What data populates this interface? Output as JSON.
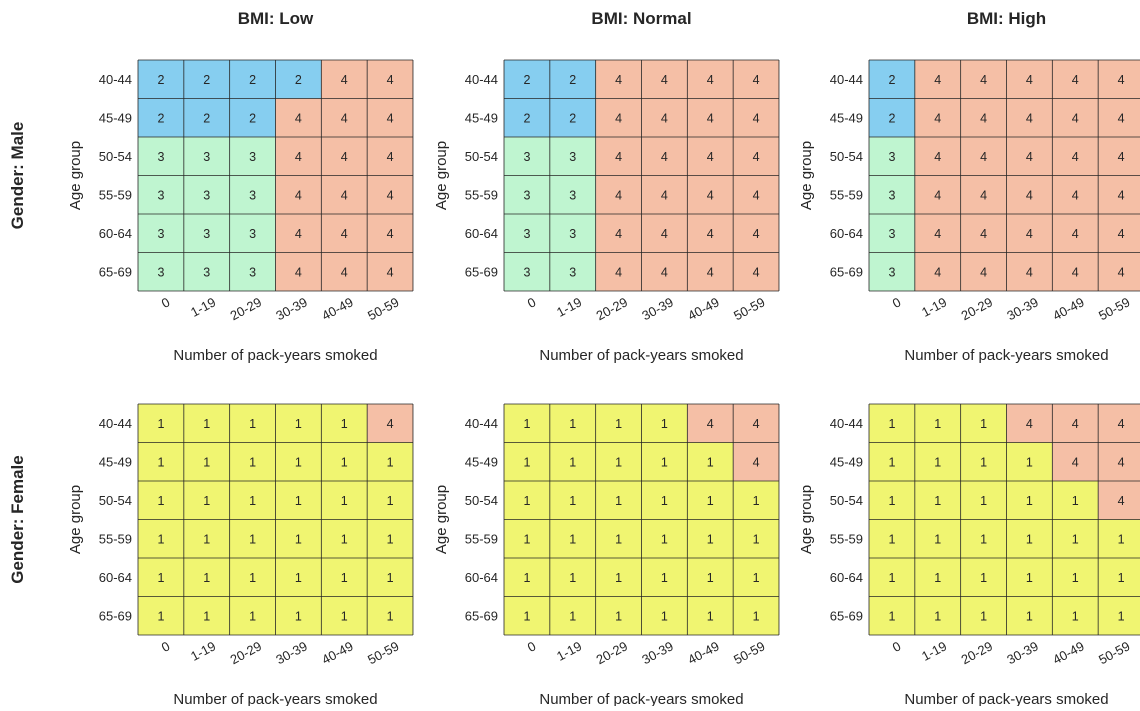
{
  "chart_data": {
    "type": "heatmap",
    "column_titles": [
      "BMI: Low",
      "BMI: Normal",
      "BMI: High"
    ],
    "row_titles": [
      "Gender: Male",
      "Gender: Female"
    ],
    "xlabel": "Number of pack-years smoked",
    "ylabel": "Age group",
    "x_categories": [
      "0",
      "1-19",
      "20-29",
      "30-39",
      "40-49",
      "50-59"
    ],
    "y_categories": [
      "40-44",
      "45-49",
      "50-54",
      "55-59",
      "60-64",
      "65-69"
    ],
    "color_map": {
      "1": "#f0f571",
      "2": "#86cef0",
      "3": "#bff5d0",
      "4": "#f5bfa6"
    },
    "panels": [
      {
        "gender": "Male",
        "bmi": "Low",
        "values": [
          [
            2,
            2,
            2,
            2,
            4,
            4
          ],
          [
            2,
            2,
            2,
            4,
            4,
            4
          ],
          [
            3,
            3,
            3,
            4,
            4,
            4
          ],
          [
            3,
            3,
            3,
            4,
            4,
            4
          ],
          [
            3,
            3,
            3,
            4,
            4,
            4
          ],
          [
            3,
            3,
            3,
            4,
            4,
            4
          ]
        ]
      },
      {
        "gender": "Male",
        "bmi": "Normal",
        "values": [
          [
            2,
            2,
            4,
            4,
            4,
            4
          ],
          [
            2,
            2,
            4,
            4,
            4,
            4
          ],
          [
            3,
            3,
            4,
            4,
            4,
            4
          ],
          [
            3,
            3,
            4,
            4,
            4,
            4
          ],
          [
            3,
            3,
            4,
            4,
            4,
            4
          ],
          [
            3,
            3,
            4,
            4,
            4,
            4
          ]
        ]
      },
      {
        "gender": "Male",
        "bmi": "High",
        "values": [
          [
            2,
            4,
            4,
            4,
            4,
            4
          ],
          [
            2,
            4,
            4,
            4,
            4,
            4
          ],
          [
            3,
            4,
            4,
            4,
            4,
            4
          ],
          [
            3,
            4,
            4,
            4,
            4,
            4
          ],
          [
            3,
            4,
            4,
            4,
            4,
            4
          ],
          [
            3,
            4,
            4,
            4,
            4,
            4
          ]
        ]
      },
      {
        "gender": "Female",
        "bmi": "Low",
        "values": [
          [
            1,
            1,
            1,
            1,
            1,
            4
          ],
          [
            1,
            1,
            1,
            1,
            1,
            1
          ],
          [
            1,
            1,
            1,
            1,
            1,
            1
          ],
          [
            1,
            1,
            1,
            1,
            1,
            1
          ],
          [
            1,
            1,
            1,
            1,
            1,
            1
          ],
          [
            1,
            1,
            1,
            1,
            1,
            1
          ]
        ]
      },
      {
        "gender": "Female",
        "bmi": "Normal",
        "values": [
          [
            1,
            1,
            1,
            1,
            4,
            4
          ],
          [
            1,
            1,
            1,
            1,
            1,
            4
          ],
          [
            1,
            1,
            1,
            1,
            1,
            1
          ],
          [
            1,
            1,
            1,
            1,
            1,
            1
          ],
          [
            1,
            1,
            1,
            1,
            1,
            1
          ],
          [
            1,
            1,
            1,
            1,
            1,
            1
          ]
        ]
      },
      {
        "gender": "Female",
        "bmi": "High",
        "values": [
          [
            1,
            1,
            1,
            4,
            4,
            4
          ],
          [
            1,
            1,
            1,
            1,
            4,
            4
          ],
          [
            1,
            1,
            1,
            1,
            1,
            4
          ],
          [
            1,
            1,
            1,
            1,
            1,
            1
          ],
          [
            1,
            1,
            1,
            1,
            1,
            1
          ],
          [
            1,
            1,
            1,
            1,
            1,
            1
          ]
        ]
      }
    ],
    "grid": true,
    "legend": "none"
  }
}
